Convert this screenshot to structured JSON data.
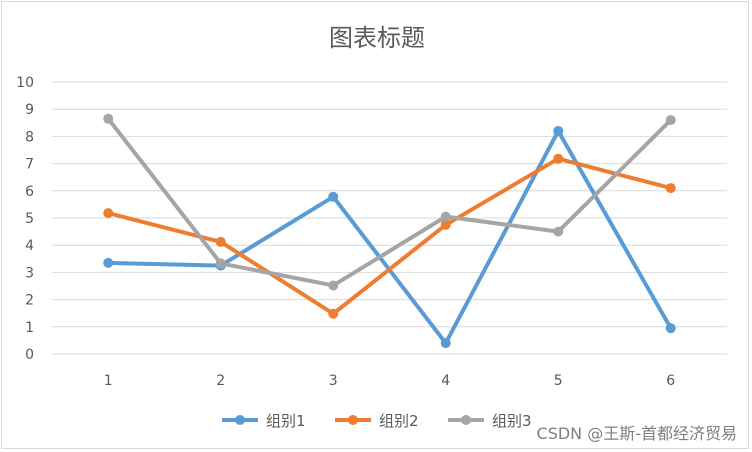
{
  "chart_data": {
    "type": "line",
    "title": "图表标题",
    "xlabel": "",
    "ylabel": "",
    "x": [
      1,
      2,
      3,
      4,
      5,
      6
    ],
    "ylim": [
      0,
      10
    ],
    "yticks": [
      0,
      1,
      2,
      3,
      4,
      5,
      6,
      7,
      8,
      9,
      10
    ],
    "grid": true,
    "legend_position": "bottom",
    "series": [
      {
        "name": "组别1",
        "color": "#5b9bd5",
        "values": [
          3.35,
          3.25,
          5.78,
          0.4,
          8.2,
          0.95
        ]
      },
      {
        "name": "组别2",
        "color": "#ed7d31",
        "values": [
          5.18,
          4.12,
          1.48,
          4.75,
          7.18,
          6.1
        ]
      },
      {
        "name": "组别3",
        "color": "#a5a5a5",
        "values": [
          8.65,
          3.33,
          2.52,
          5.05,
          4.5,
          8.6
        ]
      }
    ]
  },
  "watermark": "CSDN @王斯-首都经济贸易"
}
